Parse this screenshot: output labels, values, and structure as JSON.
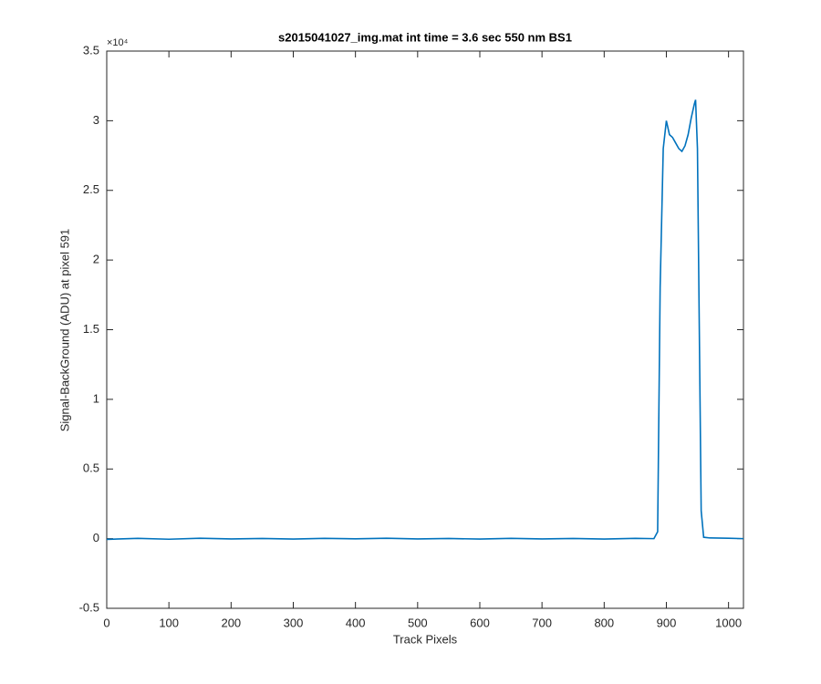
{
  "chart_data": {
    "type": "line",
    "title": "s2015041027_img.mat int time = 3.6 sec  550 nm BS1",
    "x_label": "Track Pixels",
    "y_label": "Signal-BackGround (ADU) at pixel 591",
    "y_exponent_label": "×10⁴",
    "x": [
      0,
      50,
      100,
      150,
      200,
      250,
      300,
      350,
      400,
      450,
      500,
      550,
      600,
      650,
      700,
      750,
      800,
      850,
      880,
      886,
      890,
      895,
      900,
      905,
      910,
      915,
      920,
      925,
      930,
      935,
      940,
      945,
      947,
      950,
      953,
      956,
      960,
      970,
      1000,
      1024
    ],
    "series": [
      {
        "name": "signal",
        "color": "#0072bd",
        "values": [
          -0.005,
          0.002,
          -0.004,
          0.003,
          -0.002,
          0.001,
          -0.003,
          0.002,
          -0.001,
          0.003,
          -0.002,
          0.001,
          -0.003,
          0.002,
          -0.002,
          0.001,
          -0.003,
          0.002,
          0.0,
          0.05,
          1.8,
          2.8,
          3.0,
          2.9,
          2.88,
          2.84,
          2.8,
          2.78,
          2.82,
          2.9,
          3.02,
          3.12,
          3.15,
          2.8,
          1.5,
          0.2,
          0.01,
          0.005,
          0.003,
          0.0
        ]
      }
    ],
    "xlim": [
      0,
      1024
    ],
    "ylim": [
      -0.5,
      3.5
    ],
    "xticks": [
      0,
      100,
      200,
      300,
      400,
      500,
      600,
      700,
      800,
      900,
      1000
    ],
    "yticks": [
      -0.5,
      0,
      0.5,
      1,
      1.5,
      2,
      2.5,
      3,
      3.5
    ]
  }
}
